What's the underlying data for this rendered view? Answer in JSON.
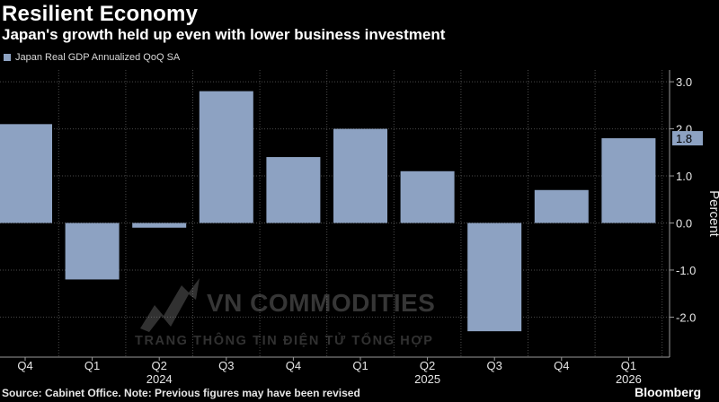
{
  "title": "Resilient Economy",
  "subtitle": "Japan's growth held up even with lower business investment",
  "footer": "Source: Cabinet Office. Note: Previous figures may have been revised",
  "brand": "Bloomberg",
  "watermark": {
    "main": "VN COMMODITIES",
    "sub": "TRANG THÔNG TIN ĐIỆN TỬ TỔNG HỢP"
  },
  "colors": {
    "bar": "#8da2c2",
    "background": "#000000",
    "grid": "#4a4a4a",
    "axis_text": "#e6e6e6"
  },
  "chart_data": {
    "type": "bar",
    "title": "Resilient Economy",
    "subtitle": "Japan's growth held up even with lower business investment",
    "ylabel": "Percent",
    "categories": [
      "Q4",
      "Q1",
      "Q2",
      "Q3",
      "Q4",
      "Q1",
      "Q2",
      "Q3",
      "Q4",
      "Q1"
    ],
    "year_labels": [
      {
        "label": "2024",
        "category_index": 2
      },
      {
        "label": "2025",
        "category_index": 6
      },
      {
        "label": "2026",
        "category_index": 9
      }
    ],
    "series": [
      {
        "name": "Japan Real GDP Annualized QoQ SA",
        "values": [
          2.1,
          -1.2,
          -0.1,
          2.8,
          1.4,
          2.0,
          1.1,
          -2.3,
          0.7,
          1.8
        ]
      }
    ],
    "last_value_label": "1.8",
    "yticks": [
      3.0,
      2.0,
      1.0,
      0.0,
      -1.0,
      -2.0
    ],
    "ytick_labels": [
      "3.0",
      "2.0",
      "1.0",
      "0.0",
      "-1.0",
      "-2.0"
    ],
    "ylim": [
      -2.85,
      3.25
    ],
    "grid": true,
    "legend_position": "top-left"
  }
}
